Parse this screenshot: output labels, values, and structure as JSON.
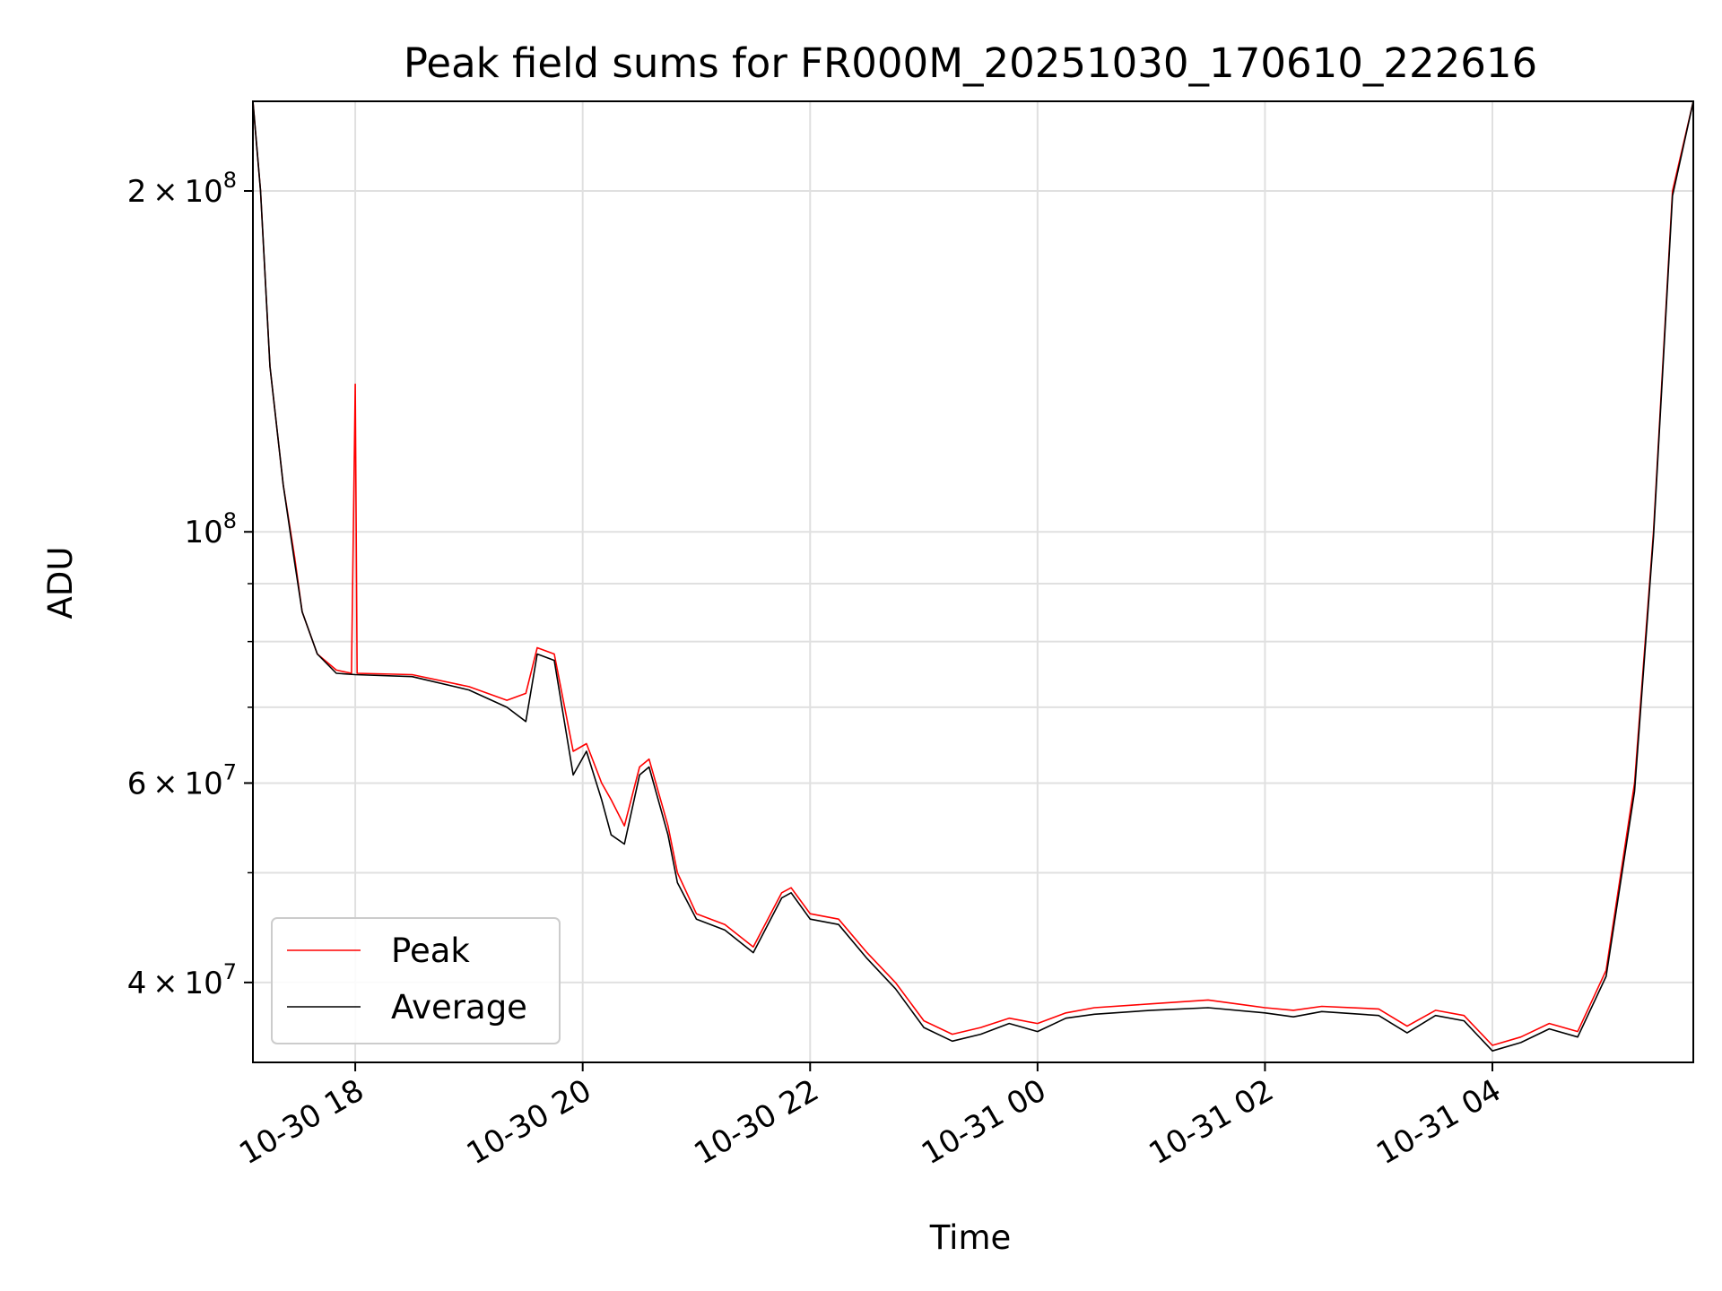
{
  "chart_data": {
    "type": "line",
    "title": "Peak field sums for FR000M_20251030_170610_222616",
    "xlabel": "Time",
    "ylabel": "ADU",
    "y_scale": "log",
    "ylim": [
      34000000,
      240000000
    ],
    "xlim": [
      "2025-10-30T17:06",
      "2025-10-31T05:46"
    ],
    "x_ticks": [
      {
        "value": "2025-10-30T18:00",
        "label": "10-30 18"
      },
      {
        "value": "2025-10-30T20:00",
        "label": "10-30 20"
      },
      {
        "value": "2025-10-30T22:00",
        "label": "10-30 22"
      },
      {
        "value": "2025-10-31T00:00",
        "label": "10-31 00"
      },
      {
        "value": "2025-10-31T02:00",
        "label": "10-31 02"
      },
      {
        "value": "2025-10-31T04:00",
        "label": "10-31 04"
      }
    ],
    "y_ticks": [
      {
        "value": 40000000,
        "label": "4 × 10^7",
        "mant": "4",
        "exp": "7"
      },
      {
        "value": 60000000,
        "label": "6 × 10^7",
        "mant": "6",
        "exp": "7"
      },
      {
        "value": 100000000,
        "label": "10^8",
        "mant": "",
        "exp": "8"
      },
      {
        "value": 200000000,
        "label": "2 × 10^8",
        "mant": "2",
        "exp": "8"
      }
    ],
    "y_minor_ticks": [
      50000000,
      70000000,
      80000000,
      90000000
    ],
    "grid": true,
    "legend_position": "lower-left",
    "series": [
      {
        "name": "Peak",
        "color": "#ff0000",
        "points": [
          [
            "2025-10-30T17:06",
            240000000
          ],
          [
            "2025-10-30T17:10",
            200000000
          ],
          [
            "2025-10-30T17:15",
            140000000
          ],
          [
            "2025-10-30T17:22",
            110000000
          ],
          [
            "2025-10-30T17:28",
            95000000
          ],
          [
            "2025-10-30T17:32",
            85000000
          ],
          [
            "2025-10-30T17:40",
            78000000
          ],
          [
            "2025-10-30T17:50",
            75500000
          ],
          [
            "2025-10-30T17:58",
            75000000
          ],
          [
            "2025-10-30T18:00",
            135000000
          ],
          [
            "2025-10-30T18:01",
            75000000
          ],
          [
            "2025-10-30T18:30",
            74800000
          ],
          [
            "2025-10-30T19:00",
            73000000
          ],
          [
            "2025-10-30T19:20",
            71000000
          ],
          [
            "2025-10-30T19:30",
            72000000
          ],
          [
            "2025-10-30T19:36",
            79000000
          ],
          [
            "2025-10-30T19:45",
            78000000
          ],
          [
            "2025-10-30T19:55",
            64000000
          ],
          [
            "2025-10-30T20:02",
            65000000
          ],
          [
            "2025-10-30T20:10",
            60000000
          ],
          [
            "2025-10-30T20:15",
            58000000
          ],
          [
            "2025-10-30T20:22",
            55000000
          ],
          [
            "2025-10-30T20:30",
            62000000
          ],
          [
            "2025-10-30T20:35",
            63000000
          ],
          [
            "2025-10-30T20:45",
            55000000
          ],
          [
            "2025-10-30T20:50",
            50000000
          ],
          [
            "2025-10-30T21:00",
            46000000
          ],
          [
            "2025-10-30T21:15",
            45000000
          ],
          [
            "2025-10-30T21:30",
            43000000
          ],
          [
            "2025-10-30T21:45",
            48000000
          ],
          [
            "2025-10-30T21:50",
            48500000
          ],
          [
            "2025-10-30T22:00",
            46000000
          ],
          [
            "2025-10-30T22:15",
            45500000
          ],
          [
            "2025-10-30T22:30",
            42500000
          ],
          [
            "2025-10-30T22:45",
            40000000
          ],
          [
            "2025-10-30T23:00",
            37000000
          ],
          [
            "2025-10-30T23:15",
            36000000
          ],
          [
            "2025-10-30T23:30",
            36500000
          ],
          [
            "2025-10-30T23:45",
            37200000
          ],
          [
            "2025-10-31T00:00",
            36800000
          ],
          [
            "2025-10-31T00:15",
            37600000
          ],
          [
            "2025-10-31T00:30",
            38000000
          ],
          [
            "2025-10-31T01:00",
            38300000
          ],
          [
            "2025-10-31T01:30",
            38600000
          ],
          [
            "2025-10-31T02:00",
            38000000
          ],
          [
            "2025-10-31T02:15",
            37800000
          ],
          [
            "2025-10-31T02:30",
            38100000
          ],
          [
            "2025-10-31T03:00",
            37900000
          ],
          [
            "2025-10-31T03:15",
            36600000
          ],
          [
            "2025-10-31T03:30",
            37800000
          ],
          [
            "2025-10-31T03:45",
            37400000
          ],
          [
            "2025-10-31T04:00",
            35200000
          ],
          [
            "2025-10-31T04:15",
            35800000
          ],
          [
            "2025-10-31T04:30",
            36800000
          ],
          [
            "2025-10-31T04:45",
            36200000
          ],
          [
            "2025-10-31T05:00",
            41000000
          ],
          [
            "2025-10-31T05:15",
            60000000
          ],
          [
            "2025-10-31T05:25",
            100000000
          ],
          [
            "2025-10-31T05:35",
            200000000
          ],
          [
            "2025-10-31T05:46",
            240000000
          ]
        ]
      },
      {
        "name": "Average",
        "color": "#000000",
        "points": [
          [
            "2025-10-30T17:06",
            240000000
          ],
          [
            "2025-10-30T17:10",
            200000000
          ],
          [
            "2025-10-30T17:15",
            140000000
          ],
          [
            "2025-10-30T17:22",
            110000000
          ],
          [
            "2025-10-30T17:28",
            94000000
          ],
          [
            "2025-10-30T17:32",
            85000000
          ],
          [
            "2025-10-30T17:40",
            78000000
          ],
          [
            "2025-10-30T17:50",
            75000000
          ],
          [
            "2025-10-30T18:00",
            74800000
          ],
          [
            "2025-10-30T18:30",
            74500000
          ],
          [
            "2025-10-30T19:00",
            72500000
          ],
          [
            "2025-10-30T19:20",
            70000000
          ],
          [
            "2025-10-30T19:30",
            68000000
          ],
          [
            "2025-10-30T19:36",
            78000000
          ],
          [
            "2025-10-30T19:45",
            77000000
          ],
          [
            "2025-10-30T19:55",
            61000000
          ],
          [
            "2025-10-30T20:02",
            64000000
          ],
          [
            "2025-10-30T20:10",
            58000000
          ],
          [
            "2025-10-30T20:15",
            54000000
          ],
          [
            "2025-10-30T20:22",
            53000000
          ],
          [
            "2025-10-30T20:30",
            61000000
          ],
          [
            "2025-10-30T20:35",
            62000000
          ],
          [
            "2025-10-30T20:45",
            54000000
          ],
          [
            "2025-10-30T20:50",
            49000000
          ],
          [
            "2025-10-30T21:00",
            45500000
          ],
          [
            "2025-10-30T21:15",
            44500000
          ],
          [
            "2025-10-30T21:30",
            42500000
          ],
          [
            "2025-10-30T21:45",
            47500000
          ],
          [
            "2025-10-30T21:50",
            48000000
          ],
          [
            "2025-10-30T22:00",
            45500000
          ],
          [
            "2025-10-30T22:15",
            45000000
          ],
          [
            "2025-10-30T22:30",
            42000000
          ],
          [
            "2025-10-30T22:45",
            39500000
          ],
          [
            "2025-10-30T23:00",
            36500000
          ],
          [
            "2025-10-30T23:15",
            35500000
          ],
          [
            "2025-10-30T23:30",
            36000000
          ],
          [
            "2025-10-30T23:45",
            36800000
          ],
          [
            "2025-10-31T00:00",
            36200000
          ],
          [
            "2025-10-31T00:15",
            37200000
          ],
          [
            "2025-10-31T00:30",
            37500000
          ],
          [
            "2025-10-31T01:00",
            37800000
          ],
          [
            "2025-10-31T01:30",
            38000000
          ],
          [
            "2025-10-31T02:00",
            37600000
          ],
          [
            "2025-10-31T02:15",
            37300000
          ],
          [
            "2025-10-31T02:30",
            37700000
          ],
          [
            "2025-10-31T03:00",
            37400000
          ],
          [
            "2025-10-31T03:15",
            36100000
          ],
          [
            "2025-10-31T03:30",
            37400000
          ],
          [
            "2025-10-31T03:45",
            37000000
          ],
          [
            "2025-10-31T04:00",
            34800000
          ],
          [
            "2025-10-31T04:15",
            35400000
          ],
          [
            "2025-10-31T04:30",
            36400000
          ],
          [
            "2025-10-31T04:45",
            35800000
          ],
          [
            "2025-10-31T05:00",
            40500000
          ],
          [
            "2025-10-31T05:15",
            59000000
          ],
          [
            "2025-10-31T05:25",
            99000000
          ],
          [
            "2025-10-31T05:35",
            198000000
          ],
          [
            "2025-10-31T05:46",
            240000000
          ]
        ]
      }
    ]
  }
}
